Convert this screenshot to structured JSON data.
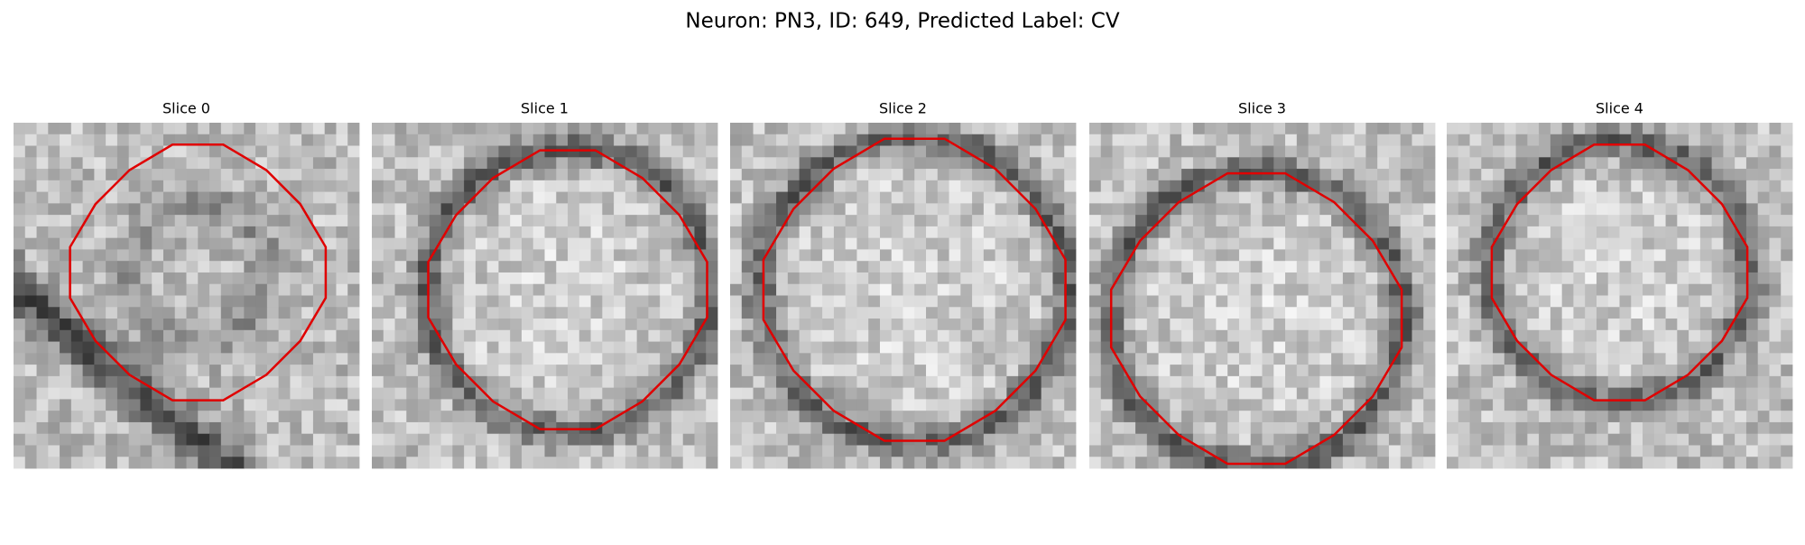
{
  "title": "Neuron: PN3, ID: 649, Predicted Label: CV",
  "panels": [
    {
      "title": "Slice 0"
    },
    {
      "title": "Slice 1"
    },
    {
      "title": "Slice 2"
    },
    {
      "title": "Slice 3"
    },
    {
      "title": "Slice 4"
    }
  ]
}
